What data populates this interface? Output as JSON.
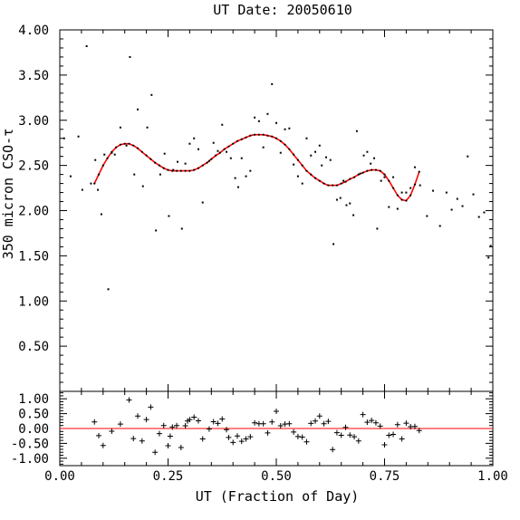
{
  "chart_data": [
    {
      "type": "scatter",
      "title": "UT Date: 20050610",
      "ylabel": "350 micron CSO-τ",
      "xlim": [
        0.0,
        1.0
      ],
      "ylim": [
        0.0,
        4.0
      ],
      "xticks": [
        "0.00",
        "0.25",
        "0.50",
        "0.75",
        "1.00"
      ],
      "yticks": [
        "0.50",
        "1.00",
        "1.50",
        "2.00",
        "2.50",
        "3.00",
        "3.50",
        "4.00"
      ],
      "series": [
        {
          "kind": "points",
          "color": "#000000",
          "x": [
            0.01,
            0.025,
            0.043,
            0.052,
            0.062,
            0.072,
            0.082,
            0.088,
            0.096,
            0.103,
            0.112,
            0.12,
            0.127,
            0.14,
            0.154,
            0.162,
            0.172,
            0.18,
            0.192,
            0.202,
            0.212,
            0.222,
            0.232,
            0.242,
            0.252,
            0.262,
            0.272,
            0.282,
            0.29,
            0.3,
            0.31,
            0.32,
            0.33,
            0.345,
            0.355,
            0.365,
            0.375,
            0.385,
            0.395,
            0.405,
            0.412,
            0.42,
            0.43,
            0.44,
            0.45,
            0.46,
            0.47,
            0.48,
            0.49,
            0.5,
            0.51,
            0.52,
            0.53,
            0.54,
            0.55,
            0.56,
            0.57,
            0.58,
            0.59,
            0.6,
            0.605,
            0.615,
            0.625,
            0.632,
            0.64,
            0.648,
            0.655,
            0.662,
            0.67,
            0.678,
            0.686,
            0.694,
            0.702,
            0.71,
            0.718,
            0.726,
            0.733,
            0.742,
            0.75,
            0.76,
            0.77,
            0.78,
            0.79,
            0.8,
            0.81,
            0.82,
            0.832,
            0.848,
            0.862,
            0.878,
            0.893,
            0.905,
            0.918,
            0.93,
            0.942,
            0.955,
            0.968,
            0.98,
            0.99,
            0.995
          ],
          "y": [
            2.8,
            2.38,
            2.82,
            2.23,
            3.82,
            2.3,
            2.56,
            2.23,
            1.96,
            2.62,
            1.13,
            2.64,
            2.62,
            2.92,
            2.72,
            3.7,
            2.4,
            3.12,
            2.27,
            2.92,
            3.28,
            1.78,
            2.4,
            2.63,
            1.94,
            2.45,
            2.54,
            1.8,
            2.52,
            2.74,
            2.8,
            2.68,
            2.09,
            2.55,
            2.75,
            2.66,
            2.95,
            2.65,
            2.58,
            2.36,
            2.26,
            2.58,
            2.38,
            2.44,
            3.03,
            2.99,
            2.7,
            3.07,
            3.4,
            2.97,
            2.64,
            2.9,
            2.91,
            2.51,
            2.38,
            2.3,
            2.8,
            2.61,
            2.65,
            2.72,
            2.5,
            2.59,
            2.56,
            1.63,
            2.12,
            2.14,
            2.33,
            2.06,
            2.08,
            1.95,
            2.88,
            2.41,
            2.61,
            2.65,
            2.52,
            2.58,
            1.8,
            2.33,
            2.37,
            2.04,
            2.37,
            2.02,
            2.2,
            2.2,
            2.25,
            2.48,
            2.28,
            1.94,
            2.22,
            1.83,
            2.2,
            2.01,
            2.13,
            2.05,
            2.6,
            2.18,
            1.93,
            1.98,
            1.48,
            1.61
          ]
        },
        {
          "kind": "fit",
          "color": "#ff0000",
          "x": [
            0.08,
            0.09,
            0.1,
            0.11,
            0.12,
            0.13,
            0.14,
            0.15,
            0.16,
            0.17,
            0.18,
            0.19,
            0.2,
            0.21,
            0.22,
            0.23,
            0.24,
            0.25,
            0.26,
            0.27,
            0.28,
            0.29,
            0.3,
            0.31,
            0.32,
            0.33,
            0.34,
            0.35,
            0.36,
            0.37,
            0.38,
            0.39,
            0.4,
            0.41,
            0.42,
            0.43,
            0.44,
            0.45,
            0.46,
            0.47,
            0.48,
            0.49,
            0.5,
            0.51,
            0.52,
            0.53,
            0.54,
            0.55,
            0.56,
            0.57,
            0.58,
            0.59,
            0.6,
            0.61,
            0.62,
            0.63,
            0.64,
            0.65,
            0.66,
            0.67,
            0.68,
            0.69,
            0.7,
            0.71,
            0.72,
            0.73,
            0.74,
            0.75,
            0.76,
            0.77,
            0.78,
            0.79,
            0.8,
            0.81,
            0.82,
            0.83
          ],
          "y": [
            2.3,
            2.4,
            2.5,
            2.58,
            2.65,
            2.7,
            2.73,
            2.74,
            2.74,
            2.72,
            2.69,
            2.65,
            2.61,
            2.57,
            2.53,
            2.5,
            2.47,
            2.45,
            2.44,
            2.44,
            2.44,
            2.44,
            2.44,
            2.45,
            2.47,
            2.5,
            2.53,
            2.57,
            2.61,
            2.64,
            2.68,
            2.71,
            2.74,
            2.77,
            2.79,
            2.81,
            2.83,
            2.84,
            2.84,
            2.84,
            2.83,
            2.82,
            2.8,
            2.77,
            2.73,
            2.68,
            2.62,
            2.56,
            2.5,
            2.44,
            2.4,
            2.36,
            2.33,
            2.3,
            2.28,
            2.28,
            2.28,
            2.3,
            2.32,
            2.35,
            2.37,
            2.4,
            2.42,
            2.44,
            2.45,
            2.45,
            2.44,
            2.4,
            2.33,
            2.25,
            2.17,
            2.12,
            2.11,
            2.17,
            2.29,
            2.43
          ]
        }
      ]
    },
    {
      "type": "scatter",
      "xlabel": "UT (Fraction of Day)",
      "xlim": [
        0.0,
        1.0
      ],
      "ylim": [
        -1.25,
        1.25
      ],
      "xticks": [
        "0.00",
        "0.25",
        "0.50",
        "0.75",
        "1.00"
      ],
      "yticks": [
        "1.00",
        "0.50",
        "0.00",
        "-0.50",
        "-1.00"
      ],
      "zero_line_color": "#ff0000",
      "series": [
        {
          "kind": "residuals",
          "color": "#000000",
          "x": [
            0.08,
            0.09,
            0.1,
            0.12,
            0.14,
            0.16,
            0.17,
            0.18,
            0.19,
            0.2,
            0.21,
            0.22,
            0.23,
            0.24,
            0.25,
            0.255,
            0.26,
            0.27,
            0.28,
            0.29,
            0.295,
            0.3,
            0.31,
            0.32,
            0.33,
            0.345,
            0.355,
            0.365,
            0.375,
            0.385,
            0.39,
            0.4,
            0.41,
            0.42,
            0.43,
            0.44,
            0.45,
            0.46,
            0.47,
            0.48,
            0.49,
            0.5,
            0.51,
            0.52,
            0.53,
            0.54,
            0.55,
            0.56,
            0.57,
            0.58,
            0.59,
            0.6,
            0.61,
            0.62,
            0.63,
            0.64,
            0.65,
            0.66,
            0.67,
            0.68,
            0.69,
            0.7,
            0.71,
            0.72,
            0.73,
            0.74,
            0.75,
            0.76,
            0.77,
            0.78,
            0.79,
            0.8,
            0.81,
            0.82,
            0.83
          ],
          "y": [
            0.22,
            -0.24,
            -0.57,
            -0.09,
            0.15,
            0.96,
            -0.34,
            0.42,
            -0.42,
            0.3,
            0.72,
            -0.8,
            -0.17,
            0.1,
            -0.58,
            -0.26,
            0.05,
            0.1,
            -0.64,
            0.09,
            0.25,
            0.3,
            0.38,
            0.26,
            -0.35,
            -0.02,
            0.23,
            0.17,
            0.32,
            -0.04,
            -0.3,
            -0.47,
            -0.25,
            -0.43,
            -0.35,
            -0.28,
            0.19,
            0.16,
            0.16,
            -0.15,
            0.22,
            0.58,
            0.09,
            0.15,
            0.16,
            -0.12,
            -0.27,
            -0.29,
            -0.45,
            0.17,
            0.25,
            0.42,
            0.16,
            0.24,
            -0.71,
            -0.14,
            -0.23,
            0.04,
            -0.22,
            -0.28,
            -0.42,
            0.47,
            0.21,
            0.27,
            0.19,
            0.08,
            -0.55,
            -0.23,
            -0.2,
            0.13,
            -0.35,
            0.18,
            0.06,
            0.07,
            -0.07
          ]
        }
      ]
    }
  ]
}
